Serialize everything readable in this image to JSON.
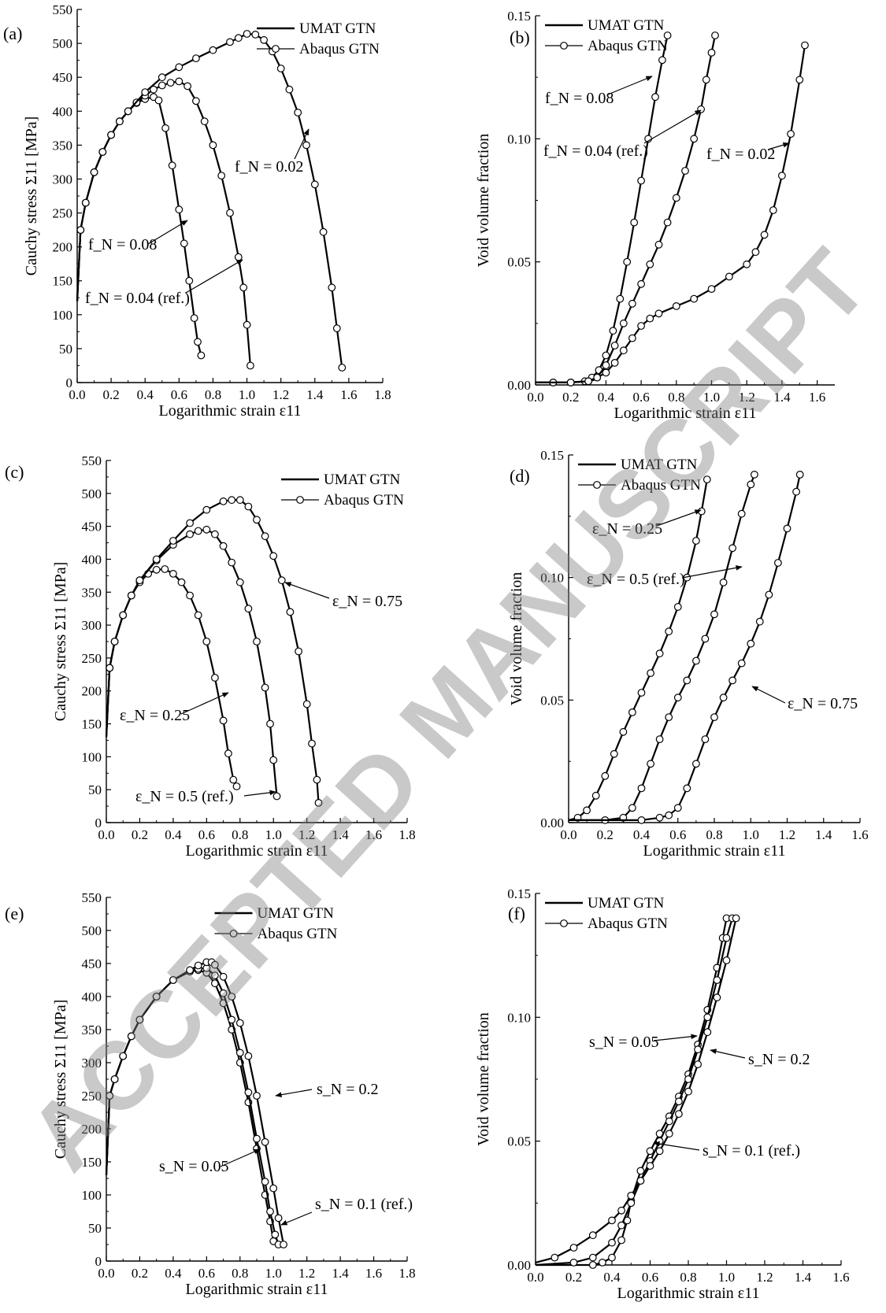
{
  "watermark": "ACCEPTED MANUSCRIPT",
  "chart_data": [
    {
      "id": "a",
      "panel_label": "(a)",
      "type": "line",
      "xlabel": "Logarithmic strain ε11",
      "ylabel": "Cauchy stress Σ11 [MPa]",
      "xlim": [
        0,
        1.8
      ],
      "ylim": [
        0,
        550
      ],
      "xticks": [
        0.0,
        0.2,
        0.4,
        0.6,
        0.8,
        1.0,
        1.2,
        1.4,
        1.6,
        1.8
      ],
      "yticks": [
        0,
        50,
        100,
        150,
        200,
        250,
        300,
        350,
        400,
        450,
        500,
        550
      ],
      "ytick_decimals": 0,
      "legend": {
        "position": "top-right",
        "entries": [
          "UMAT GTN",
          "Abaqus GTN"
        ]
      },
      "series": [
        {
          "label": "f_N = 0.08",
          "x": [
            0,
            0.02,
            0.05,
            0.1,
            0.15,
            0.2,
            0.25,
            0.3,
            0.35,
            0.4,
            0.45,
            0.48,
            0.52,
            0.56,
            0.6,
            0.63,
            0.66,
            0.69,
            0.71,
            0.73
          ],
          "y": [
            120,
            225,
            265,
            310,
            340,
            365,
            385,
            400,
            412,
            418,
            421,
            416,
            375,
            320,
            255,
            205,
            150,
            95,
            60,
            40
          ]
        },
        {
          "label": "f_N = 0.04 (ref.)",
          "x": [
            0,
            0.02,
            0.05,
            0.1,
            0.15,
            0.2,
            0.25,
            0.3,
            0.35,
            0.4,
            0.45,
            0.5,
            0.55,
            0.6,
            0.65,
            0.7,
            0.75,
            0.8,
            0.85,
            0.9,
            0.95,
            0.98,
            1.0,
            1.02
          ],
          "y": [
            120,
            225,
            265,
            310,
            340,
            365,
            385,
            400,
            413,
            423,
            432,
            438,
            442,
            444,
            437,
            415,
            385,
            350,
            305,
            250,
            185,
            140,
            85,
            25
          ]
        },
        {
          "label": "f_N = 0.02",
          "x": [
            0,
            0.02,
            0.05,
            0.1,
            0.15,
            0.2,
            0.25,
            0.3,
            0.4,
            0.5,
            0.6,
            0.7,
            0.8,
            0.9,
            0.95,
            1.0,
            1.05,
            1.1,
            1.15,
            1.2,
            1.25,
            1.3,
            1.35,
            1.4,
            1.45,
            1.5,
            1.53,
            1.56
          ],
          "y": [
            120,
            225,
            265,
            310,
            340,
            365,
            385,
            400,
            428,
            450,
            465,
            478,
            490,
            502,
            508,
            514,
            513,
            505,
            488,
            463,
            432,
            398,
            350,
            292,
            222,
            140,
            80,
            22
          ]
        }
      ],
      "annotations": [
        "f_N = 0.02",
        "f_N = 0.08",
        "f_N = 0.04 (ref.)"
      ]
    },
    {
      "id": "b",
      "panel_label": "(b)",
      "type": "line",
      "xlabel": "Logarithmic strain ε11",
      "ylabel": "Void volume fraction",
      "xlim": [
        0,
        1.7
      ],
      "ylim": [
        0,
        0.15
      ],
      "xticks": [
        0.0,
        0.2,
        0.4,
        0.6,
        0.8,
        1.0,
        1.2,
        1.4,
        1.6
      ],
      "yticks": [
        0.0,
        0.05,
        0.1,
        0.15
      ],
      "ytick_decimals": 2,
      "legend": {
        "position": "top-left",
        "entries": [
          "UMAT GTN",
          "Abaqus GTN"
        ]
      },
      "series": [
        {
          "label": "f_N = 0.08",
          "x": [
            0,
            0.1,
            0.2,
            0.28,
            0.32,
            0.36,
            0.4,
            0.44,
            0.48,
            0.52,
            0.56,
            0.6,
            0.64,
            0.68,
            0.72,
            0.75
          ],
          "y": [
            0.001,
            0.001,
            0.001,
            0.0015,
            0.003,
            0.006,
            0.012,
            0.022,
            0.035,
            0.05,
            0.066,
            0.083,
            0.1,
            0.117,
            0.132,
            0.142
          ]
        },
        {
          "label": "f_N = 0.04 (ref.)",
          "x": [
            0,
            0.1,
            0.2,
            0.3,
            0.35,
            0.4,
            0.45,
            0.5,
            0.55,
            0.6,
            0.65,
            0.7,
            0.75,
            0.8,
            0.85,
            0.9,
            0.94,
            0.97,
            1.0,
            1.02
          ],
          "y": [
            0.001,
            0.001,
            0.001,
            0.0015,
            0.003,
            0.008,
            0.016,
            0.025,
            0.033,
            0.041,
            0.049,
            0.057,
            0.066,
            0.076,
            0.087,
            0.1,
            0.112,
            0.124,
            0.135,
            0.142
          ]
        },
        {
          "label": "f_N = 0.02",
          "x": [
            0,
            0.2,
            0.3,
            0.35,
            0.4,
            0.45,
            0.5,
            0.55,
            0.6,
            0.65,
            0.7,
            0.8,
            0.9,
            1.0,
            1.1,
            1.2,
            1.25,
            1.3,
            1.35,
            1.4,
            1.45,
            1.5,
            1.53
          ],
          "y": [
            0.001,
            0.001,
            0.0015,
            0.003,
            0.005,
            0.009,
            0.014,
            0.019,
            0.024,
            0.027,
            0.029,
            0.032,
            0.035,
            0.039,
            0.044,
            0.049,
            0.054,
            0.061,
            0.071,
            0.085,
            0.102,
            0.124,
            0.138
          ]
        }
      ],
      "annotations": [
        "f_N = 0.08",
        "f_N = 0.04 (ref.)",
        "f_N = 0.02"
      ]
    },
    {
      "id": "c",
      "panel_label": "(c)",
      "type": "line",
      "xlabel": "Logarithmic strain ε11",
      "ylabel": "Cauchy stress Σ11 [MPa]",
      "xlim": [
        0,
        1.8
      ],
      "ylim": [
        0,
        550
      ],
      "xticks": [
        0.0,
        0.2,
        0.4,
        0.6,
        0.8,
        1.0,
        1.2,
        1.4,
        1.6,
        1.8
      ],
      "yticks": [
        0,
        50,
        100,
        150,
        200,
        250,
        300,
        350,
        400,
        450,
        500,
        550
      ],
      "ytick_decimals": 0,
      "legend": {
        "position": "top-right",
        "entries": [
          "UMAT GTN",
          "Abaqus GTN"
        ]
      },
      "series": [
        {
          "label": "ε_N = 0.25",
          "x": [
            0,
            0.02,
            0.05,
            0.1,
            0.15,
            0.2,
            0.25,
            0.3,
            0.35,
            0.4,
            0.45,
            0.5,
            0.55,
            0.6,
            0.65,
            0.7,
            0.73,
            0.76,
            0.78
          ],
          "y": [
            130,
            235,
            275,
            315,
            345,
            365,
            378,
            384,
            385,
            378,
            365,
            345,
            315,
            275,
            220,
            155,
            105,
            65,
            55
          ]
        },
        {
          "label": "ε_N = 0.5 (ref.)",
          "x": [
            0,
            0.02,
            0.05,
            0.1,
            0.15,
            0.2,
            0.3,
            0.4,
            0.5,
            0.55,
            0.6,
            0.65,
            0.7,
            0.75,
            0.8,
            0.85,
            0.9,
            0.95,
            0.98,
            1.0,
            1.02
          ],
          "y": [
            130,
            235,
            275,
            315,
            345,
            368,
            398,
            422,
            438,
            443,
            445,
            438,
            420,
            395,
            365,
            325,
            275,
            205,
            150,
            95,
            40
          ]
        },
        {
          "label": "ε_N = 0.75",
          "x": [
            0,
            0.02,
            0.05,
            0.1,
            0.15,
            0.2,
            0.3,
            0.4,
            0.5,
            0.6,
            0.7,
            0.75,
            0.8,
            0.85,
            0.9,
            0.95,
            1.0,
            1.05,
            1.1,
            1.15,
            1.2,
            1.23,
            1.26,
            1.27
          ],
          "y": [
            130,
            235,
            275,
            315,
            345,
            368,
            400,
            428,
            455,
            475,
            488,
            490,
            490,
            480,
            460,
            435,
            405,
            368,
            320,
            260,
            180,
            120,
            65,
            30
          ]
        }
      ],
      "annotations": [
        "ε_N = 0.75",
        "ε_N = 0.25",
        "ε_N = 0.5 (ref.)"
      ]
    },
    {
      "id": "d",
      "panel_label": "(d)",
      "type": "line",
      "xlabel": "Logarithmic strain ε11",
      "ylabel": "Void volume fraction",
      "xlim": [
        0,
        1.6
      ],
      "ylim": [
        0,
        0.15
      ],
      "xticks": [
        0.0,
        0.2,
        0.4,
        0.6,
        0.8,
        1.0,
        1.2,
        1.4,
        1.6
      ],
      "yticks": [
        0.0,
        0.05,
        0.1,
        0.15
      ],
      "ytick_decimals": 2,
      "legend": {
        "position": "top-left",
        "entries": [
          "UMAT GTN",
          "Abaqus GTN"
        ]
      },
      "series": [
        {
          "label": "ε_N = 0.25",
          "x": [
            0,
            0.05,
            0.1,
            0.15,
            0.2,
            0.25,
            0.3,
            0.35,
            0.4,
            0.45,
            0.5,
            0.55,
            0.6,
            0.65,
            0.7,
            0.73,
            0.76
          ],
          "y": [
            0.001,
            0.002,
            0.005,
            0.011,
            0.019,
            0.028,
            0.037,
            0.045,
            0.053,
            0.061,
            0.069,
            0.078,
            0.088,
            0.1,
            0.115,
            0.127,
            0.14
          ]
        },
        {
          "label": "ε_N = 0.5 (ref.)",
          "x": [
            0,
            0.2,
            0.3,
            0.35,
            0.4,
            0.45,
            0.5,
            0.55,
            0.6,
            0.65,
            0.7,
            0.75,
            0.8,
            0.85,
            0.9,
            0.95,
            1.0,
            1.02
          ],
          "y": [
            0.001,
            0.001,
            0.002,
            0.006,
            0.014,
            0.024,
            0.034,
            0.043,
            0.051,
            0.058,
            0.066,
            0.075,
            0.085,
            0.098,
            0.112,
            0.126,
            0.138,
            0.142
          ]
        },
        {
          "label": "ε_N = 0.75",
          "x": [
            0,
            0.4,
            0.5,
            0.55,
            0.6,
            0.65,
            0.7,
            0.75,
            0.8,
            0.85,
            0.9,
            0.95,
            1.0,
            1.05,
            1.1,
            1.15,
            1.2,
            1.25,
            1.27
          ],
          "y": [
            0.001,
            0.001,
            0.002,
            0.003,
            0.006,
            0.014,
            0.024,
            0.034,
            0.043,
            0.051,
            0.058,
            0.065,
            0.073,
            0.082,
            0.093,
            0.106,
            0.12,
            0.135,
            0.142
          ]
        }
      ],
      "annotations": [
        "ε_N = 0.25",
        "ε_N = 0.5 (ref.)",
        "ε_N = 0.75"
      ]
    },
    {
      "id": "e",
      "panel_label": "(e)",
      "type": "line",
      "xlabel": "Logarithmic strain ε11",
      "ylabel": "Cauchy stress Σ11 [MPa]",
      "xlim": [
        0,
        1.8
      ],
      "ylim": [
        0,
        550
      ],
      "xticks": [
        0.0,
        0.2,
        0.4,
        0.6,
        0.8,
        1.0,
        1.2,
        1.4,
        1.6,
        1.8
      ],
      "yticks": [
        0,
        50,
        100,
        150,
        200,
        250,
        300,
        350,
        400,
        450,
        500,
        550
      ],
      "ytick_decimals": 0,
      "legend": {
        "position": "top-center",
        "entries": [
          "UMAT GTN",
          "Abaqus GTN"
        ]
      },
      "series": [
        {
          "label": "s_N = 0.05",
          "x": [
            0,
            0.02,
            0.05,
            0.1,
            0.15,
            0.2,
            0.3,
            0.4,
            0.5,
            0.55,
            0.6,
            0.65,
            0.7,
            0.75,
            0.8,
            0.85,
            0.9,
            0.95,
            0.98,
            1.0
          ],
          "y": [
            130,
            250,
            275,
            310,
            340,
            365,
            400,
            425,
            438,
            440,
            436,
            420,
            390,
            350,
            300,
            240,
            170,
            100,
            60,
            30
          ]
        },
        {
          "label": "s_N = 0.1 (ref.)",
          "x": [
            0,
            0.02,
            0.05,
            0.1,
            0.15,
            0.2,
            0.3,
            0.4,
            0.5,
            0.55,
            0.6,
            0.65,
            0.7,
            0.75,
            0.8,
            0.85,
            0.9,
            0.95,
            0.98,
            1.01,
            1.03
          ],
          "y": [
            130,
            250,
            275,
            310,
            340,
            365,
            400,
            425,
            438,
            442,
            443,
            432,
            405,
            365,
            315,
            255,
            185,
            120,
            75,
            40,
            25
          ]
        },
        {
          "label": "s_N = 0.2",
          "x": [
            0,
            0.02,
            0.05,
            0.1,
            0.15,
            0.2,
            0.3,
            0.4,
            0.5,
            0.55,
            0.6,
            0.63,
            0.65,
            0.7,
            0.75,
            0.8,
            0.85,
            0.9,
            0.95,
            1.0,
            1.03,
            1.06
          ],
          "y": [
            130,
            250,
            275,
            310,
            340,
            365,
            400,
            425,
            440,
            447,
            452,
            452,
            448,
            430,
            400,
            360,
            310,
            250,
            180,
            110,
            65,
            25
          ]
        }
      ],
      "annotations": [
        "s_N = 0.2",
        "s_N = 0.05",
        "s_N = 0.1 (ref.)"
      ]
    },
    {
      "id": "f",
      "panel_label": "(f)",
      "type": "line",
      "xlabel": "Logarithmic strain ε11",
      "ylabel": "Void volume fraction",
      "xlim": [
        0,
        1.6
      ],
      "ylim": [
        0,
        0.15
      ],
      "xticks": [
        0.0,
        0.2,
        0.4,
        0.6,
        0.8,
        1.0,
        1.2,
        1.4,
        1.6
      ],
      "yticks": [
        0.0,
        0.05,
        0.1,
        0.15
      ],
      "ytick_decimals": 2,
      "legend": {
        "position": "top-left",
        "entries": [
          "UMAT GTN",
          "Abaqus GTN"
        ]
      },
      "series": [
        {
          "label": "s_N = 0.05",
          "x": [
            0,
            0.3,
            0.35,
            0.4,
            0.45,
            0.48,
            0.5,
            0.55,
            0.6,
            0.65,
            0.7,
            0.75,
            0.8,
            0.85,
            0.9,
            0.95,
            0.98,
            1.0
          ],
          "y": [
            0.0,
            0.0,
            0.001,
            0.003,
            0.01,
            0.018,
            0.026,
            0.038,
            0.046,
            0.053,
            0.06,
            0.068,
            0.077,
            0.089,
            0.103,
            0.12,
            0.132,
            0.14
          ]
        },
        {
          "label": "s_N = 0.1 (ref.)",
          "x": [
            0,
            0.2,
            0.3,
            0.4,
            0.45,
            0.5,
            0.55,
            0.6,
            0.65,
            0.7,
            0.75,
            0.8,
            0.85,
            0.9,
            0.95,
            1.0,
            1.03
          ],
          "y": [
            0.0,
            0.001,
            0.003,
            0.009,
            0.016,
            0.025,
            0.034,
            0.042,
            0.05,
            0.058,
            0.066,
            0.075,
            0.087,
            0.1,
            0.115,
            0.132,
            0.14
          ]
        },
        {
          "label": "s_N = 0.2",
          "x": [
            0,
            0.1,
            0.2,
            0.3,
            0.4,
            0.45,
            0.5,
            0.55,
            0.6,
            0.65,
            0.7,
            0.75,
            0.8,
            0.85,
            0.9,
            0.95,
            1.0,
            1.05
          ],
          "y": [
            0.001,
            0.003,
            0.007,
            0.012,
            0.018,
            0.022,
            0.028,
            0.034,
            0.04,
            0.046,
            0.053,
            0.061,
            0.07,
            0.081,
            0.094,
            0.108,
            0.123,
            0.14
          ]
        }
      ],
      "annotations": [
        "s_N = 0.05",
        "s_N = 0.2",
        "s_N = 0.1 (ref.)"
      ]
    }
  ]
}
